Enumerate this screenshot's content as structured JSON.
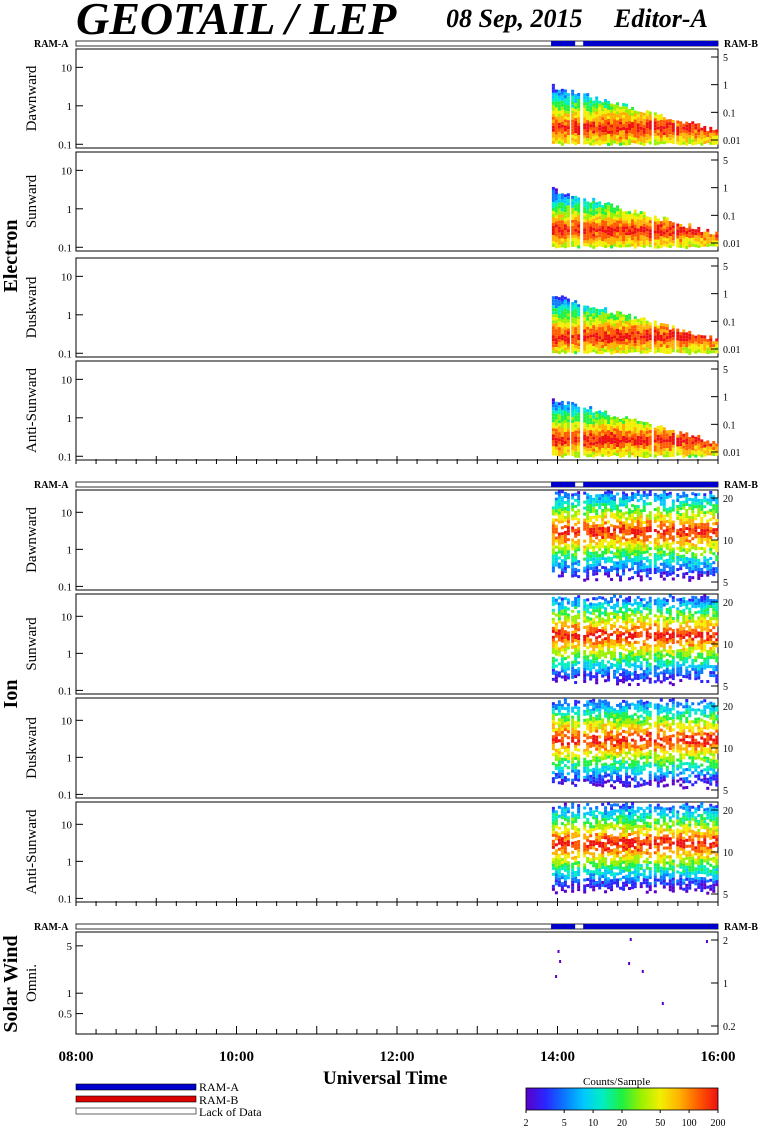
{
  "header": {
    "instrument": "GEOTAIL / LEP",
    "date": "08 Sep, 2015",
    "editor": "Editor-A"
  },
  "mode_bar": {
    "left_label": "RAM-A",
    "right_label": "RAM-B"
  },
  "legend": {
    "ram_a": "RAM-A",
    "ram_b": "RAM-B",
    "lack": "Lack of Data",
    "ram_a_color": "#0000cc",
    "ram_b_color": "#dd0000"
  },
  "colorbar": {
    "title": "Counts/Sample",
    "ticks": [
      "2",
      "5",
      "10",
      "20",
      "50",
      "100",
      "200"
    ]
  },
  "chart_data": [
    {
      "type": "heatmap",
      "group": "Electron",
      "panels": [
        "Dawnward",
        "Sunward",
        "Duskward",
        "Anti-Sunward"
      ],
      "left_ticks": [
        "10",
        "1",
        "0.1"
      ],
      "right_ticks": [
        "5",
        "1",
        "0.1",
        "0.01"
      ],
      "ylim": [
        0.08,
        30
      ],
      "data_start_hour": 13.92
    },
    {
      "type": "heatmap",
      "group": "Ion",
      "panels": [
        "Dawnward",
        "Sunward",
        "Duskward",
        "Anti-Sunward"
      ],
      "left_ticks": [
        "10",
        "1",
        "0.1"
      ],
      "right_ticks": [
        "20",
        "10",
        "5"
      ],
      "ylim": [
        0.08,
        40
      ],
      "data_start_hour": 13.92
    },
    {
      "type": "scatter",
      "group": "Solar Wind",
      "panels": [
        "Omni."
      ],
      "left_ticks": [
        "5",
        "1",
        "0.5"
      ],
      "right_ticks": [
        "2",
        "1",
        "0.2"
      ],
      "ylim": [
        0.25,
        8
      ]
    }
  ],
  "xaxis": {
    "title": "Universal Time",
    "ticks": [
      "08:00",
      "10:00",
      "12:00",
      "14:00",
      "16:00"
    ],
    "range_hours": [
      8,
      16
    ]
  }
}
